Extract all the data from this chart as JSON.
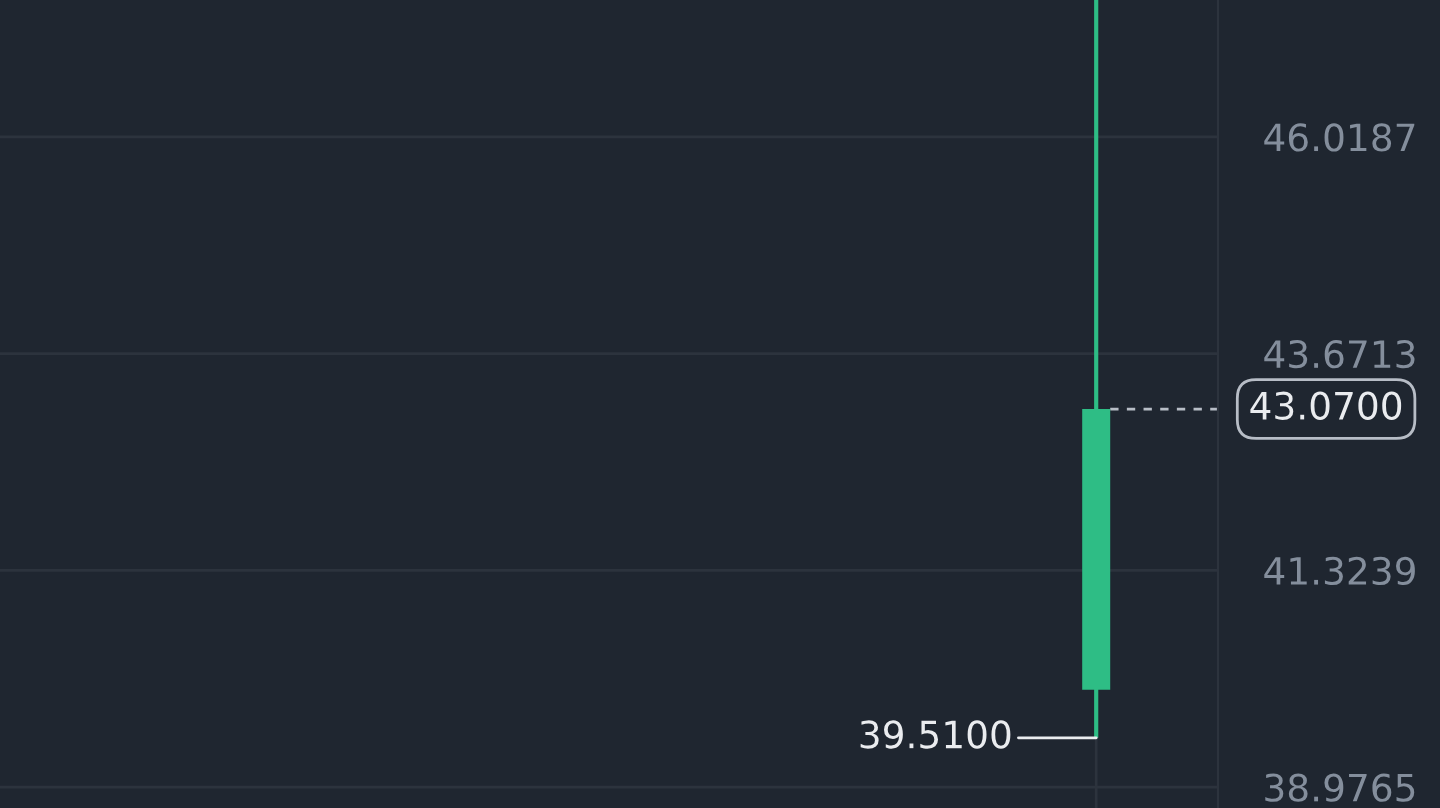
{
  "chart_data": {
    "type": "candlestick",
    "categories": [
      null,
      null,
      null,
      null,
      null
    ],
    "ohlc": [
      null,
      null,
      null,
      null,
      [
        40.03,
        47.5,
        39.51,
        43.07
      ]
    ],
    "colors": [
      null,
      null,
      null,
      null,
      "#2ebd85"
    ],
    "ylim": [
      38.75,
      47.5
    ],
    "yticks": [
      38.9765,
      41.3239,
      43.6713,
      46.0187
    ],
    "grid": true,
    "tick_labels": "y",
    "ref_lines": [
      {
        "axis": "y",
        "value": 43.07,
        "label": "43.0700",
        "line_style": "dashed",
        "color": "#b7bdc6"
      }
    ],
    "annotations": [
      "39.5100"
    ]
  }
}
